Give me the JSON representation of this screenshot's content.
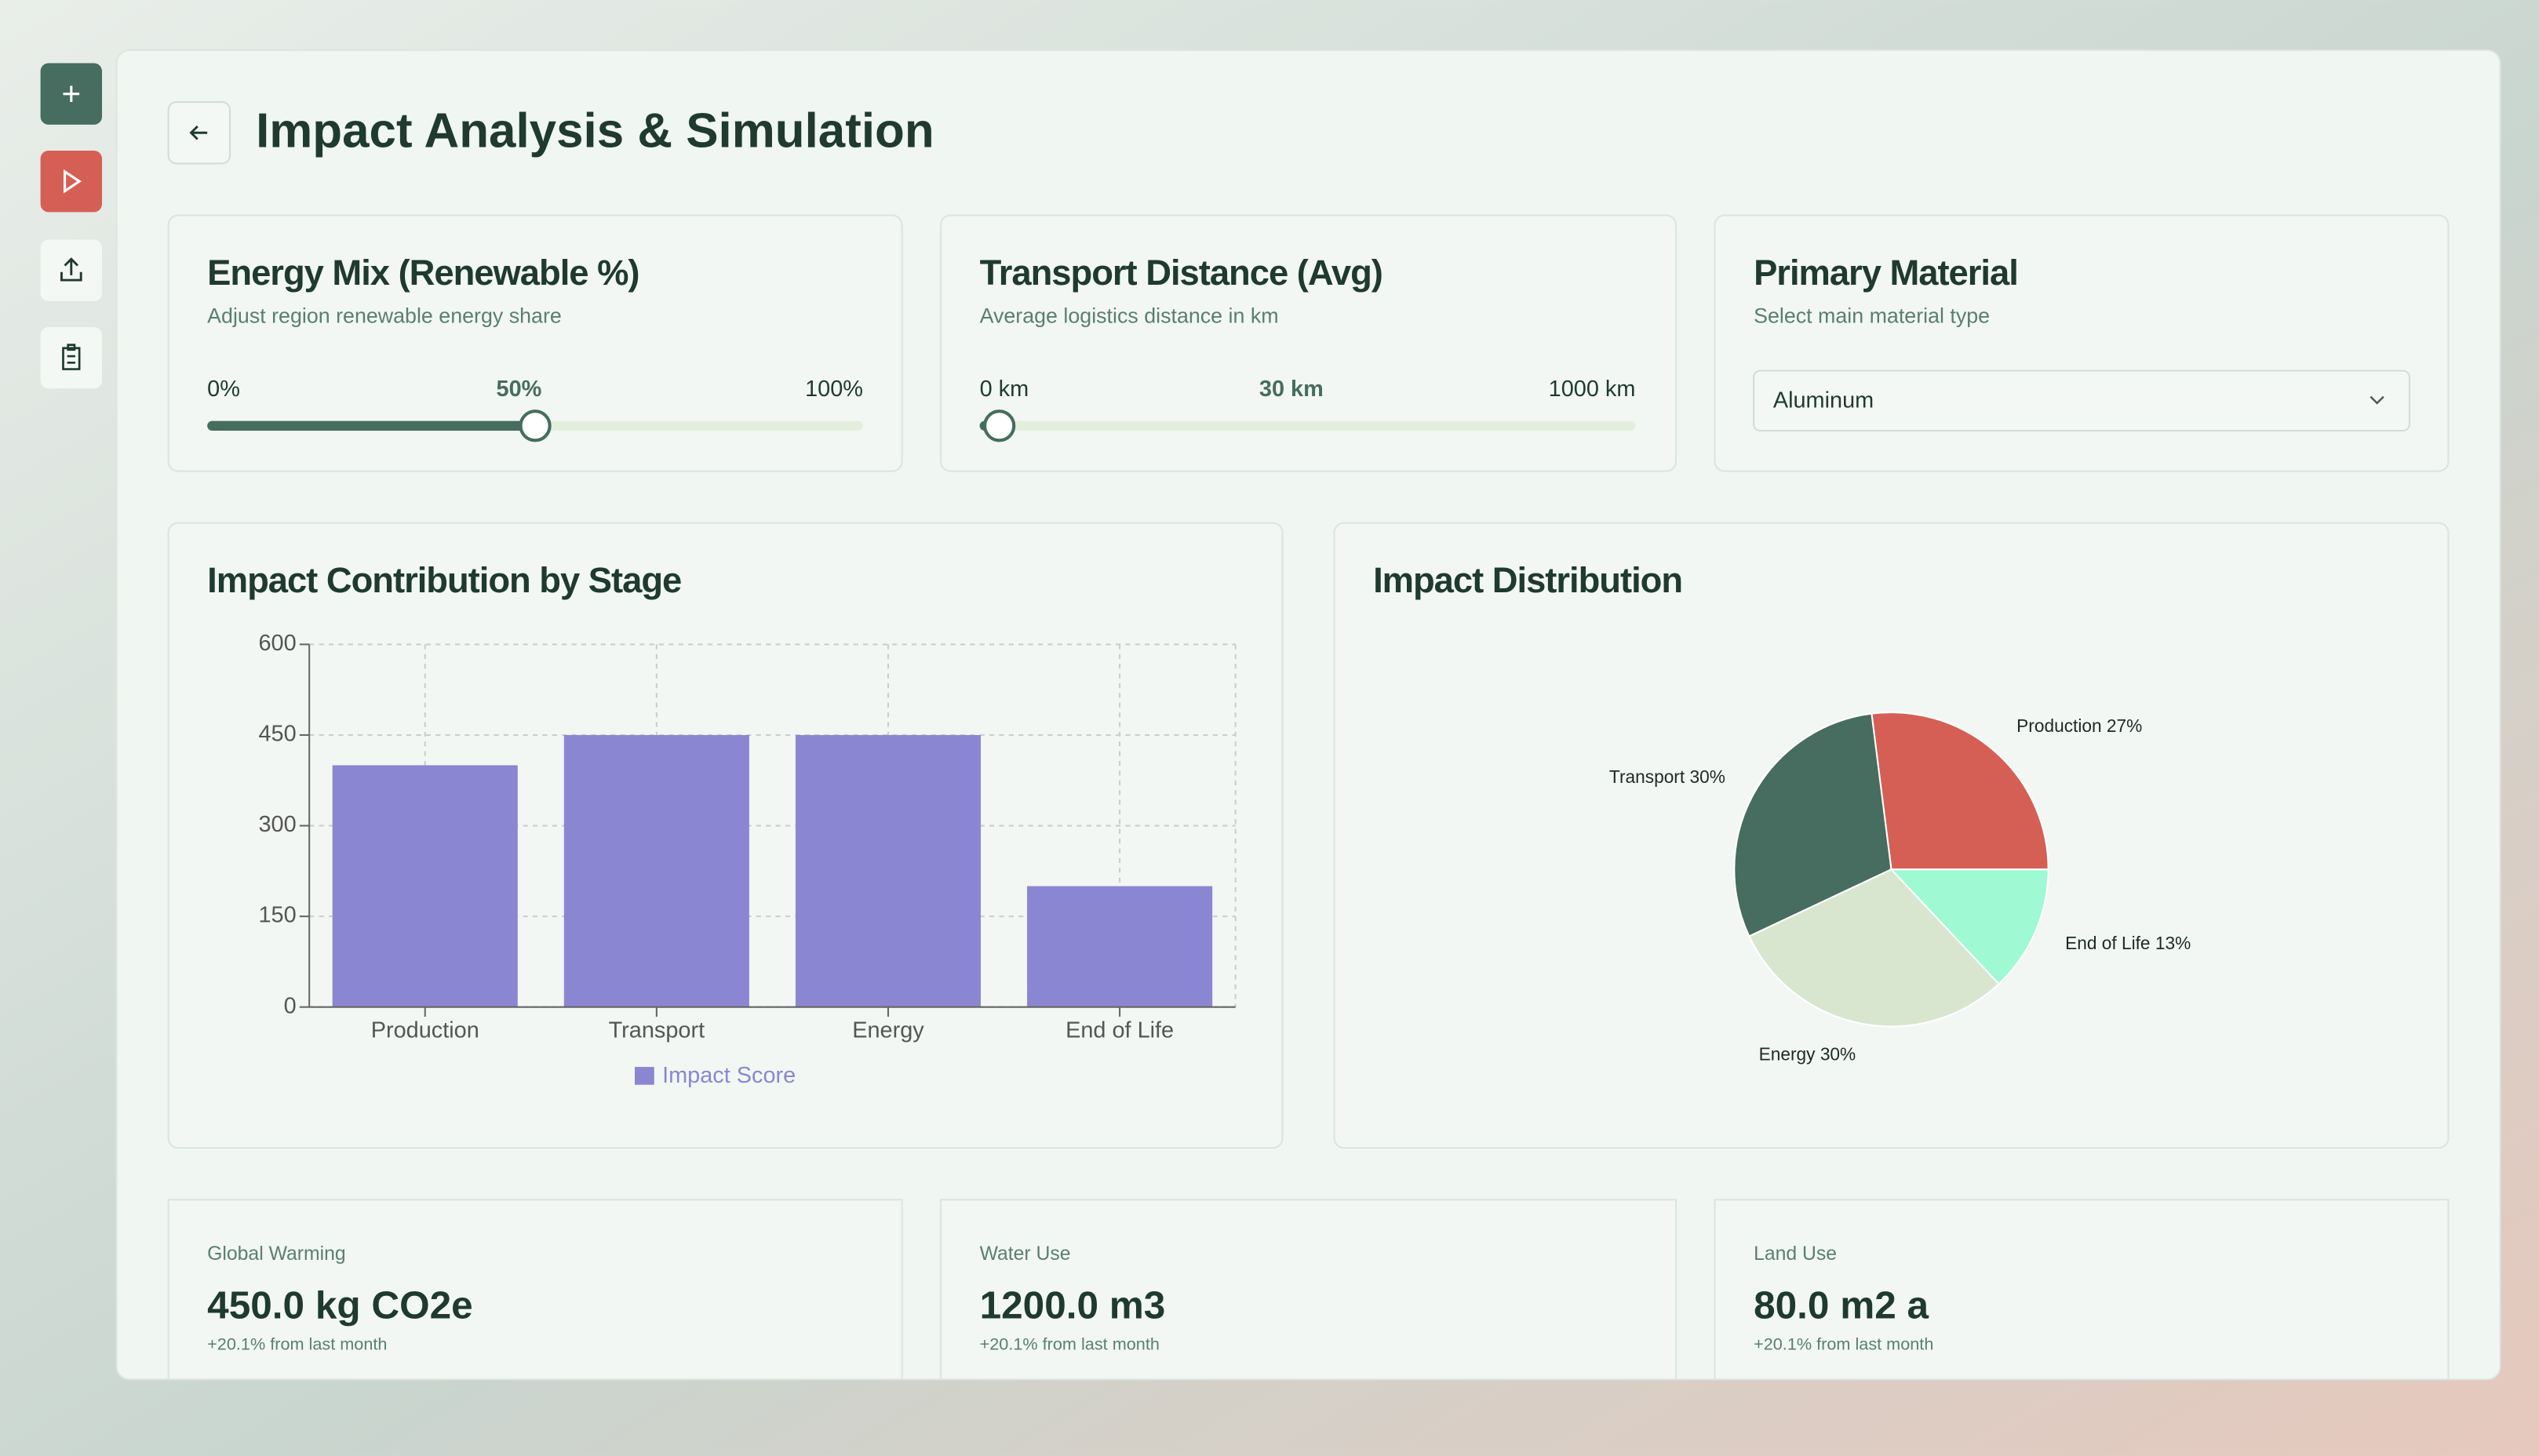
{
  "header": {
    "title": "Impact Analysis & Simulation"
  },
  "controls": [
    {
      "title": "Energy Mix (Renewable %)",
      "subtitle": "Adjust region renewable energy share",
      "min": {
        "value": 0,
        "label": "0%"
      },
      "value": {
        "value": 50,
        "label": "50%"
      },
      "max": {
        "value": 100,
        "label": "100%"
      }
    },
    {
      "title": "Transport Distance (Avg)",
      "subtitle": "Average logistics distance in km",
      "min": {
        "value": 0,
        "label": "0 km"
      },
      "value": {
        "value": 30,
        "label": "30 km"
      },
      "max": {
        "value": 1000,
        "label": "1000 km"
      }
    },
    {
      "title": "Primary Material",
      "subtitle": "Select main material type",
      "selected": "Aluminum"
    }
  ],
  "chart_data": [
    {
      "type": "bar",
      "title": "Impact Contribution by Stage",
      "categories": [
        "Production",
        "Transport",
        "Energy",
        "End of Life"
      ],
      "series": [
        {
          "name": "Impact Score",
          "color": "#8b86d1",
          "values": [
            400,
            450,
            450,
            200
          ]
        }
      ],
      "ylim": [
        0,
        600
      ],
      "yticks": [
        0,
        150,
        300,
        450,
        600
      ],
      "grid": true
    },
    {
      "type": "pie",
      "title": "Impact Distribution",
      "categories": [
        "Production",
        "Transport",
        "Energy",
        "End of Life"
      ],
      "values": [
        27,
        30,
        30,
        13
      ],
      "value_labels": [
        "Production 27%",
        "Transport 30%",
        "Energy 30%",
        "End of Life 13%"
      ],
      "colors": [
        "#d65f55",
        "#466d5f",
        "#d8e6d0",
        "#9ffad4"
      ]
    }
  ],
  "metrics": [
    {
      "label": "Global Warming",
      "value": "450.0 kg CO2e",
      "change": "+20.1% from last month"
    },
    {
      "label": "Water Use",
      "value": "1200.0 m3",
      "change": "+20.1% from last month"
    },
    {
      "label": "Land Use",
      "value": "80.0 m2 a",
      "change": "+20.1% from last month"
    }
  ]
}
